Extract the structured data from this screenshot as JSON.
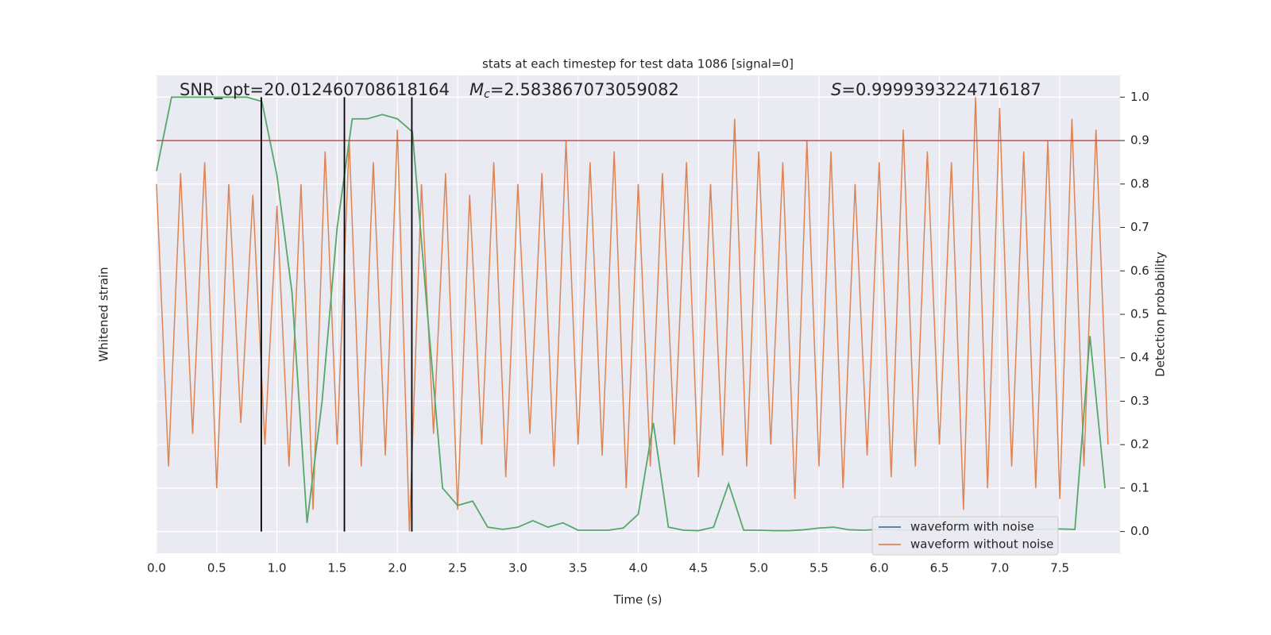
{
  "chart_data": {
    "type": "line",
    "title": "stats at each timestep for test data 1086 [signal=0]",
    "xlabel": "Time (s)",
    "ylabel": "Whitened strain",
    "y2label": "Detection probability",
    "annotations": {
      "snr": "SNR_opt=20.012460708618164",
      "mc": {
        "symbol": "M",
        "subscript": "c",
        "text": "=2.583867073059082"
      },
      "s": {
        "symbol": "S",
        "text": "=0.9999393224716187"
      }
    },
    "xlim": [
      0,
      8
    ],
    "xticks": [
      {
        "value": 0,
        "label": "0.0"
      },
      0.5,
      {
        "value": 1,
        "label": "1.0"
      },
      1.5,
      {
        "value": 2,
        "label": "2.0"
      },
      2.5,
      {
        "value": 3,
        "label": "3.0"
      },
      3.5,
      {
        "value": 4,
        "label": "4.0"
      },
      4.5,
      {
        "value": 5,
        "label": "5.0"
      },
      5.5,
      {
        "value": 6,
        "label": "6.0"
      },
      6.5,
      {
        "value": 7,
        "label": "7.0"
      },
      7.5
    ],
    "ylim": [
      -1.1,
      1.1
    ],
    "y2lim": [
      -0.05,
      1.05
    ],
    "y2ticks": [
      {
        "value": 0,
        "label": "0.0"
      },
      0.1,
      0.2,
      0.3,
      0.4,
      0.5,
      0.6,
      0.7,
      0.8,
      0.9,
      {
        "value": 1,
        "label": "1.0"
      }
    ],
    "grid": true,
    "legend": "lower right",
    "series": [
      {
        "name": "waveform with noise",
        "color": "#4c72b0"
      },
      {
        "name": "waveform without noise",
        "color": "#dd8452",
        "x": [
          0.0,
          0.1,
          0.2,
          0.3,
          0.4,
          0.5,
          0.6,
          0.7,
          0.8,
          0.9,
          1.0,
          1.1,
          1.2,
          1.3,
          1.4,
          1.5,
          1.6,
          1.7,
          1.8,
          1.9,
          2.0,
          2.1,
          2.2,
          2.3,
          2.4,
          2.5,
          2.6,
          2.7,
          2.8,
          2.9,
          3.0,
          3.1,
          3.2,
          3.3,
          3.4,
          3.5,
          3.6,
          3.7,
          3.8,
          3.9,
          4.0,
          4.1,
          4.2,
          4.3,
          4.4,
          4.5,
          4.6,
          4.7,
          4.8,
          4.9,
          5.0,
          5.1,
          5.2,
          5.3,
          5.4,
          5.5,
          5.6,
          5.7,
          5.8,
          5.9,
          6.0,
          6.1,
          6.2,
          6.3,
          6.4,
          6.5,
          6.6,
          6.7,
          6.8,
          6.9,
          7.0,
          7.1,
          7.2,
          7.3,
          7.4,
          7.5,
          7.6,
          7.7,
          7.8,
          7.9
        ],
        "values": [
          0.6,
          -0.7,
          0.65,
          -0.55,
          0.7,
          -0.8,
          0.6,
          -0.5,
          0.55,
          -0.6,
          0.5,
          -0.7,
          0.6,
          -0.9,
          0.75,
          -0.6,
          0.8,
          -0.7,
          0.7,
          -0.65,
          0.85,
          -1.0,
          0.6,
          -0.55,
          0.65,
          -0.9,
          0.55,
          -0.6,
          0.7,
          -0.75,
          0.6,
          -0.55,
          0.65,
          -0.7,
          0.8,
          -0.6,
          0.7,
          -0.65,
          0.75,
          -0.8,
          0.6,
          -0.7,
          0.65,
          -0.6,
          0.7,
          -0.75,
          0.6,
          -0.65,
          0.9,
          -0.7,
          0.75,
          -0.6,
          0.7,
          -0.85,
          0.8,
          -0.7,
          0.75,
          -0.8,
          0.6,
          -0.65,
          0.7,
          -0.75,
          0.85,
          -0.7,
          0.75,
          -0.6,
          0.7,
          -0.9,
          1.0,
          -0.8,
          0.95,
          -0.7,
          0.75,
          -0.8,
          0.8,
          -0.85,
          0.9,
          -0.7,
          0.85,
          -0.6
        ]
      },
      {
        "color": "#55a868",
        "axis": "y2",
        "x": [
          0,
          0.125,
          0.25,
          0.375,
          0.5,
          0.625,
          0.75,
          0.875,
          1.0,
          1.125,
          1.25,
          1.375,
          1.5,
          1.625,
          1.75,
          1.875,
          2.0,
          2.125,
          2.25,
          2.375,
          2.5,
          2.625,
          2.75,
          2.875,
          3.0,
          3.125,
          3.25,
          3.375,
          3.5,
          3.625,
          3.75,
          3.875,
          4.0,
          4.125,
          4.25,
          4.375,
          4.5,
          4.625,
          4.75,
          4.875,
          5.0,
          5.125,
          5.25,
          5.375,
          5.5,
          5.625,
          5.75,
          5.875,
          6.0,
          6.125,
          6.25,
          6.375,
          6.5,
          6.625,
          6.75,
          6.875,
          7.0,
          7.125,
          7.25,
          7.375,
          7.5,
          7.625,
          7.75,
          7.875
        ],
        "values": [
          0.83,
          1.0,
          1.0,
          1.0,
          1.0,
          1.0,
          1.0,
          0.99,
          0.82,
          0.55,
          0.02,
          0.3,
          0.7,
          0.95,
          0.95,
          0.96,
          0.95,
          0.92,
          0.5,
          0.1,
          0.06,
          0.07,
          0.01,
          0.005,
          0.01,
          0.025,
          0.01,
          0.02,
          0.003,
          0.003,
          0.003,
          0.008,
          0.04,
          0.25,
          0.01,
          0.003,
          0.002,
          0.01,
          0.11,
          0.003,
          0.003,
          0.002,
          0.002,
          0.004,
          0.008,
          0.01,
          0.004,
          0.003,
          0.005,
          0.004,
          0.003,
          0.004,
          0.004,
          0.006,
          0.005,
          0.004,
          0.005,
          0.004,
          0.005,
          0.005,
          0.006,
          0.005,
          0.45,
          0.1
        ]
      }
    ],
    "vlines": {
      "color": "#000000",
      "x": [
        0.87,
        1.56,
        2.12
      ]
    },
    "hline": {
      "color": "#c44e52",
      "value": 0.9,
      "axis": "y2"
    }
  }
}
